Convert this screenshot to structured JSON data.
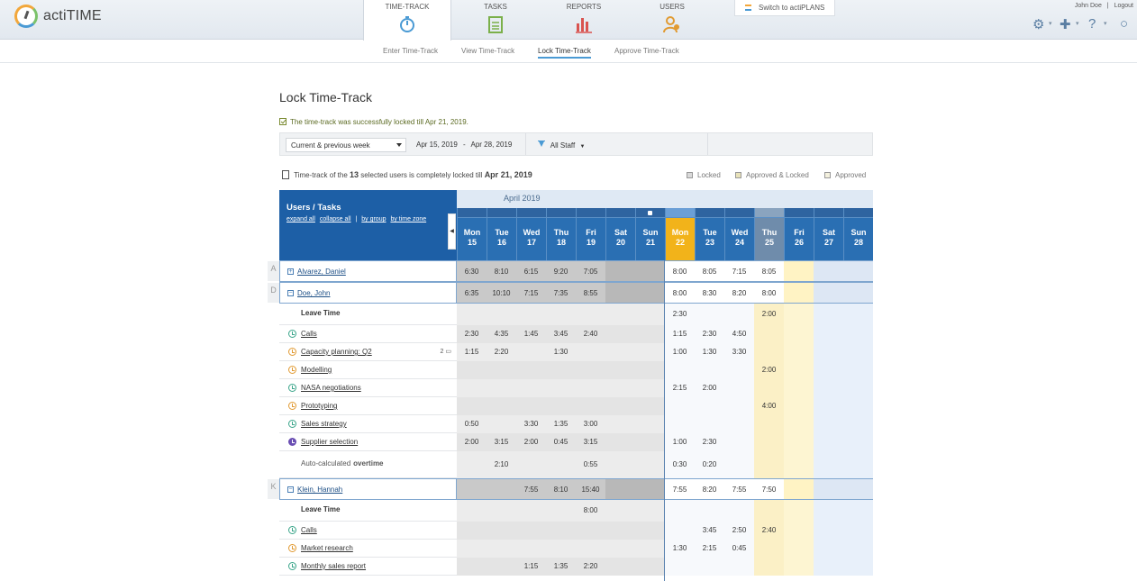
{
  "app": {
    "brand": "actiTIME"
  },
  "header": {
    "tabs": [
      {
        "label": "TIME-TRACK"
      },
      {
        "label": "TASKS"
      },
      {
        "label": "REPORTS"
      },
      {
        "label": "USERS"
      }
    ],
    "switch_label": "Switch to actiPLANS",
    "user_name": "John Doe",
    "logout": "Logout",
    "sep": "|"
  },
  "subnav": [
    {
      "label": "Enter Time-Track"
    },
    {
      "label": "View Time-Track"
    },
    {
      "label": "Lock Time-Track"
    },
    {
      "label": "Approve Time-Track"
    }
  ],
  "page": {
    "title": "Lock Time-Track",
    "success": "The time-track was successfully locked till Apr 21, 2019."
  },
  "filter": {
    "period": "Current & previous week",
    "date_from": "Apr 15, 2019",
    "dash": "-",
    "date_to": "Apr 28, 2019",
    "staff": "All Staff"
  },
  "lock_note": {
    "pre": "Time-track of the",
    "count": "13",
    "mid": "selected users is completely locked till",
    "date": "Apr 21, 2019"
  },
  "legend": [
    {
      "label": "Locked",
      "color": "#d9d9d9"
    },
    {
      "label": "Approved & Locked",
      "color": "#e8e2b9"
    },
    {
      "label": "Approved",
      "color": "#f4f1de"
    }
  ],
  "grid": {
    "title": "Users / Tasks",
    "links": [
      "expand all",
      "collapse all",
      "|",
      "by group",
      "by time zone"
    ],
    "month": "April 2019",
    "days": [
      {
        "dow": "Mon",
        "d": "15"
      },
      {
        "dow": "Tue",
        "d": "16"
      },
      {
        "dow": "Wed",
        "d": "17"
      },
      {
        "dow": "Thu",
        "d": "18"
      },
      {
        "dow": "Fri",
        "d": "19"
      },
      {
        "dow": "Sat",
        "d": "20"
      },
      {
        "dow": "Sun",
        "d": "21"
      },
      {
        "dow": "Mon",
        "d": "22"
      },
      {
        "dow": "Tue",
        "d": "23"
      },
      {
        "dow": "Wed",
        "d": "24"
      },
      {
        "dow": "Thu",
        "d": "25"
      },
      {
        "dow": "Fri",
        "d": "26"
      },
      {
        "dow": "Sat",
        "d": "27"
      },
      {
        "dow": "Sun",
        "d": "28"
      }
    ],
    "group_letters": [
      "A",
      "D",
      "K"
    ],
    "rows": [
      {
        "type": "user",
        "expand": "+",
        "name": "Alvarez, Daniel",
        "values": [
          "6:30",
          "8:10",
          "6:15",
          "9:20",
          "7:05",
          "",
          "",
          "8:00",
          "8:05",
          "7:15",
          "8:05",
          "",
          "",
          ""
        ]
      },
      {
        "type": "user",
        "expand": "−",
        "name": "Doe, John",
        "values": [
          "6:35",
          "10:10",
          "7:15",
          "7:35",
          "8:55",
          "",
          "",
          "8:00",
          "8:30",
          "8:20",
          "8:00",
          "",
          "",
          ""
        ]
      },
      {
        "type": "leave",
        "name": "Leave Time",
        "values": [
          "",
          "",
          "",
          "",
          "",
          "",
          "",
          "2:30",
          "",
          "",
          "2:00",
          "",
          "",
          ""
        ]
      },
      {
        "type": "task",
        "icon": "green",
        "name": "Calls",
        "values": [
          "2:30",
          "4:35",
          "1:45",
          "3:45",
          "2:40",
          "",
          "",
          "1:15",
          "2:30",
          "4:50",
          "",
          "",
          "",
          ""
        ]
      },
      {
        "type": "task",
        "icon": "orange",
        "name": "Capacity planning: Q2",
        "badge": "2",
        "values": [
          "1:15",
          "2:20",
          "",
          "1:30",
          "",
          "",
          "",
          "1:00",
          "1:30",
          "3:30",
          "",
          "",
          "",
          ""
        ]
      },
      {
        "type": "task",
        "icon": "orange",
        "name": "Modelling",
        "values": [
          "",
          "",
          "",
          "",
          "",
          "",
          "",
          "",
          "",
          "",
          "2:00",
          "",
          "",
          ""
        ]
      },
      {
        "type": "task",
        "icon": "green",
        "name": "NASA negotiations",
        "values": [
          "",
          "",
          "",
          "",
          "",
          "",
          "",
          "2:15",
          "2:00",
          "",
          "",
          "",
          "",
          ""
        ]
      },
      {
        "type": "task",
        "icon": "orange",
        "name": "Prototyping",
        "values": [
          "",
          "",
          "",
          "",
          "",
          "",
          "",
          "",
          "",
          "",
          "4:00",
          "",
          "",
          ""
        ]
      },
      {
        "type": "task",
        "icon": "green",
        "name": "Sales strategy",
        "values": [
          "0:50",
          "",
          "3:30",
          "1:35",
          "3:00",
          "",
          "",
          "",
          "",
          "",
          "",
          "",
          "",
          ""
        ]
      },
      {
        "type": "task",
        "icon": "purple",
        "name": "Supplier selection",
        "values": [
          "2:00",
          "3:15",
          "2:00",
          "0:45",
          "3:15",
          "",
          "",
          "1:00",
          "2:30",
          "",
          "",
          "",
          "",
          ""
        ]
      },
      {
        "type": "overtime",
        "name_pre": "Auto-calculated",
        "name_bold": "overtime",
        "values": [
          "",
          "2:10",
          "",
          "",
          "0:55",
          "",
          "",
          "0:30",
          "0:20",
          "",
          "",
          "",
          "",
          ""
        ]
      },
      {
        "type": "user",
        "expand": "−",
        "name": "Klein, Hannah",
        "values": [
          "",
          "",
          "7:55",
          "8:10",
          "15:40",
          "",
          "",
          "7:55",
          "8:20",
          "7:55",
          "7:50",
          "",
          "",
          ""
        ]
      },
      {
        "type": "leave",
        "name": "Leave Time",
        "values": [
          "",
          "",
          "",
          "",
          "8:00",
          "",
          "",
          "",
          "",
          "",
          "",
          "",
          "",
          ""
        ]
      },
      {
        "type": "task",
        "icon": "green",
        "name": "Calls",
        "values": [
          "",
          "",
          "",
          "",
          "",
          "",
          "",
          "",
          "3:45",
          "2:50",
          "2:40",
          "",
          "",
          ""
        ]
      },
      {
        "type": "task",
        "icon": "orange",
        "name": "Market research",
        "values": [
          "",
          "",
          "",
          "",
          "",
          "",
          "",
          "1:30",
          "2:15",
          "0:45",
          "",
          "",
          "",
          ""
        ]
      },
      {
        "type": "task",
        "icon": "green",
        "name": "Monthly sales report",
        "values": [
          "",
          "",
          "1:15",
          "1:35",
          "2:20",
          "",
          "",
          "",
          "",
          "",
          "",
          "",
          "",
          ""
        ]
      }
    ]
  }
}
